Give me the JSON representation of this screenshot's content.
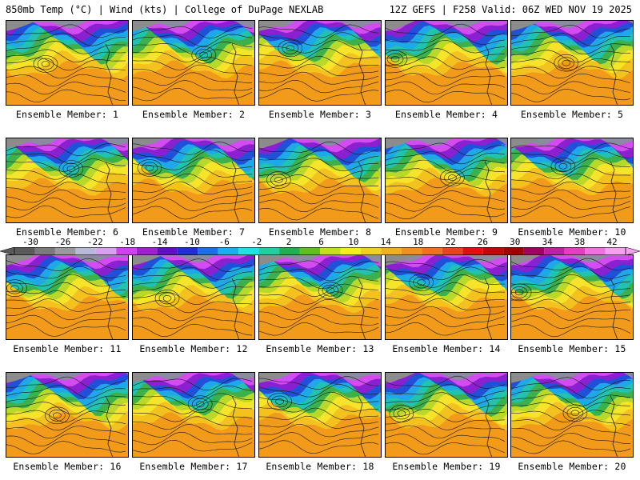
{
  "header": {
    "title_left": "850mb Temp (°C) | Wind (kts) | College of DuPage NEXLAB",
    "title_right": "12Z GEFS | F258 Valid: 06Z WED NOV 19 2025"
  },
  "panels": [
    {
      "label": "Ensemble Member: 1"
    },
    {
      "label": "Ensemble Member: 2"
    },
    {
      "label": "Ensemble Member: 3"
    },
    {
      "label": "Ensemble Member: 4"
    },
    {
      "label": "Ensemble Member: 5"
    },
    {
      "label": "Ensemble Member: 6"
    },
    {
      "label": "Ensemble Member: 7"
    },
    {
      "label": "Ensemble Member: 8"
    },
    {
      "label": "Ensemble Member: 9"
    },
    {
      "label": "Ensemble Member: 10"
    },
    {
      "label": "Ensemble Member: 11"
    },
    {
      "label": "Ensemble Member: 12"
    },
    {
      "label": "Ensemble Member: 13"
    },
    {
      "label": "Ensemble Member: 14"
    },
    {
      "label": "Ensemble Member: 15"
    },
    {
      "label": "Ensemble Member: 16"
    },
    {
      "label": "Ensemble Member: 17"
    },
    {
      "label": "Ensemble Member: 18"
    },
    {
      "label": "Ensemble Member: 19"
    },
    {
      "label": "Ensemble Member: 20"
    }
  ],
  "colorbar": {
    "ticks": [
      "-30",
      "-26",
      "-22",
      "-18",
      "-14",
      "-10",
      "-6",
      "-2",
      "2",
      "6",
      "10",
      "14",
      "18",
      "22",
      "26",
      "30",
      "34",
      "38",
      "42"
    ],
    "colors": [
      "#5a5a5a",
      "#7a7a7a",
      "#9a9a9a",
      "#b8b8d8",
      "#d8a0f0",
      "#d040f0",
      "#a020d0",
      "#6010c0",
      "#2030d0",
      "#1a70e0",
      "#18b0f0",
      "#20e0e8",
      "#20d0a0",
      "#20b050",
      "#60c020",
      "#c0e020",
      "#f0f020",
      "#f0d020",
      "#f0b020",
      "#f09020",
      "#f07020",
      "#f04020",
      "#e01010",
      "#c00808",
      "#a00000",
      "#a00060",
      "#c020a0",
      "#e040c0",
      "#f070e0",
      "#f8a0f0"
    ]
  }
}
